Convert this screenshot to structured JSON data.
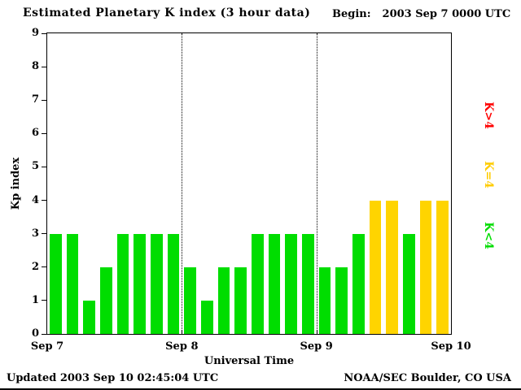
{
  "title": "Estimated Planetary K index (3 hour data)",
  "begin": {
    "label": "Begin:",
    "value": "2003 Sep 7 0000 UTC"
  },
  "footer": {
    "updated": "Updated 2003 Sep 10 02:45:04 UTC",
    "source": "NOAA/SEC Boulder, CO USA"
  },
  "legend": {
    "items": [
      {
        "label": "K>4",
        "color": "#ff0000"
      },
      {
        "label": "K=4",
        "color": "#ffcc00"
      },
      {
        "label": "K<4",
        "color": "#00dd00"
      }
    ]
  },
  "chart_data": {
    "type": "bar",
    "title": "Estimated Planetary K index (3 hour data)",
    "xlabel": "Universal Time",
    "ylabel": "Kp index",
    "ylim": [
      0,
      9
    ],
    "yticks": [
      0,
      1,
      2,
      3,
      4,
      5,
      6,
      7,
      8,
      9
    ],
    "x_tick_labels": [
      "Sep 7",
      "Sep 8",
      "Sep 9",
      "Sep 10"
    ],
    "bars_per_day": 8,
    "bin_hours": 3,
    "grid": "dotted vertical day separators",
    "legend_position": "right, rotated",
    "values": [
      3,
      3,
      1,
      2,
      3,
      3,
      3,
      3,
      2,
      1,
      2,
      2,
      3,
      3,
      3,
      3,
      2,
      2,
      3,
      4,
      4,
      3,
      4,
      4
    ],
    "colors": {
      "lt4": "#00dd00",
      "eq4": "#ffd400",
      "gt4": "#ff0000"
    }
  }
}
